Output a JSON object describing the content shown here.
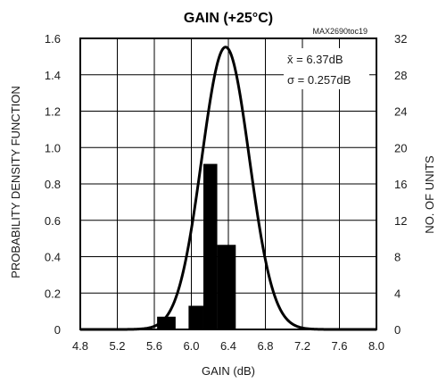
{
  "chart_data": {
    "type": "bar",
    "title": "GAIN (+25°C)",
    "note": "MAX2690toc19",
    "xlabel": "GAIN (dB)",
    "ylabel_left": "PROBABILITY DENSITY FUNCTION",
    "ylabel_right": "NO. OF UNITS",
    "xlim": [
      4.8,
      8.0
    ],
    "ylim_left": [
      0,
      1.6
    ],
    "ylim_right": [
      0,
      32
    ],
    "x_ticks": [
      "4.8",
      "5.2",
      "5.6",
      "6.0",
      "6.4",
      "6.8",
      "7.2",
      "7.6",
      "8.0"
    ],
    "y_left_ticks": [
      "0",
      "0.2",
      "0.4",
      "0.6",
      "0.8",
      "1.0",
      "1.2",
      "1.4",
      "1.6"
    ],
    "y_right_ticks": [
      "0",
      "4",
      "8",
      "12",
      "16",
      "20",
      "24",
      "28",
      "32"
    ],
    "grid": true,
    "histogram": {
      "name": "NO. OF UNITS",
      "color": "#000000",
      "bins": [
        {
          "x0": 5.63,
          "x1": 5.83,
          "count": 1.4
        },
        {
          "x0": 5.97,
          "x1": 6.13,
          "count": 2.6
        },
        {
          "x0": 6.13,
          "x1": 6.28,
          "count": 18.2
        },
        {
          "x0": 6.28,
          "x1": 6.48,
          "count": 9.3
        }
      ]
    },
    "distribution": {
      "name": "PROBABILITY DENSITY FUNCTION",
      "kind": "normal",
      "mean": 6.37,
      "sigma": 0.257,
      "color": "#000000"
    },
    "annotations": {
      "mean_label": "x̄ = 6.37dB",
      "sigma_label": "σ = 0.257dB"
    }
  }
}
